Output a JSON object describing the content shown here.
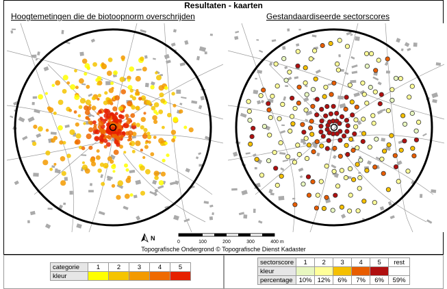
{
  "title": "Resultaten - kaarten",
  "left_map": {
    "title": "Hoogtemetingen die de biotoopnorm overschrijden"
  },
  "right_map": {
    "title": "Gestandaardiseerde sectorscores"
  },
  "north_label": "N",
  "scale_labels": [
    "0",
    "100",
    "200",
    "300",
    "400 m"
  ],
  "credit": "Topografische Ondergrond © Topografische Dienst Kadaster",
  "left_legend": {
    "header_label": "categorie",
    "color_label": "kleur",
    "categories": [
      "1",
      "2",
      "3",
      "4",
      "5"
    ],
    "colors": [
      "#ffff00",
      "#f5c400",
      "#f39a00",
      "#ef6a00",
      "#e62000"
    ]
  },
  "right_legend": {
    "header_label": "sectorscore",
    "color_label": "kleur",
    "percentage_label": "percentage",
    "categories": [
      "1",
      "2",
      "3",
      "4",
      "5",
      "rest"
    ],
    "colors": [
      "#e8f7c0",
      "#ffff99",
      "#f5c000",
      "#e85d00",
      "#b01010",
      "#ffffff"
    ],
    "percentages": [
      "10%",
      "12%",
      "6%",
      "7%",
      "6%",
      "59%"
    ]
  }
}
